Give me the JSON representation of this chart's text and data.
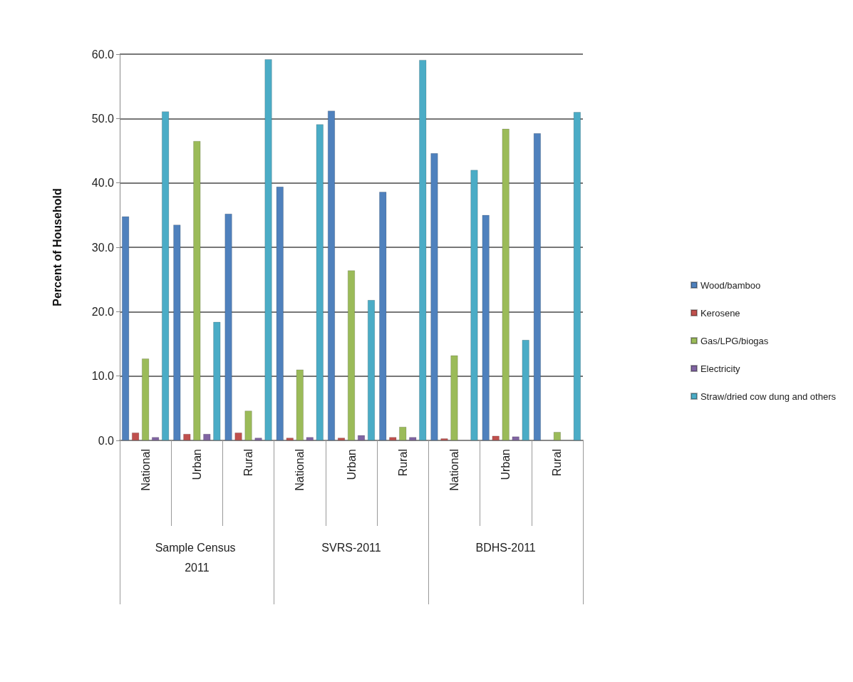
{
  "chart_data": {
    "type": "bar",
    "ylabel": "Percent of Household",
    "categories": [
      "National",
      "Urban",
      "Rural",
      "National",
      "Urban",
      "Rural",
      "National",
      "Urban",
      "Rural"
    ],
    "annotations": [
      "Sample Census 2011",
      "SVRS-2011",
      "BDHS-2011"
    ],
    "series": [
      {
        "name": "Wood/bamboo",
        "color": "#4f81bd",
        "values": [
          34.8,
          33.5,
          35.2,
          39.4,
          51.2,
          38.6,
          44.6,
          35.0,
          47.7
        ]
      },
      {
        "name": "Kerosene",
        "color": "#c0504d",
        "values": [
          1.2,
          1.0,
          1.2,
          0.4,
          0.4,
          0.5,
          0.3,
          0.7,
          null
        ]
      },
      {
        "name": "Gas/LPG/biogas",
        "color": "#9bbb59",
        "values": [
          12.7,
          46.5,
          4.6,
          11.0,
          26.4,
          2.1,
          13.2,
          48.4,
          1.3
        ]
      },
      {
        "name": "Electricity",
        "color": "#8064a2",
        "values": [
          0.5,
          1.0,
          0.4,
          0.5,
          0.8,
          0.5,
          null,
          0.6,
          null
        ]
      },
      {
        "name": "Straw/dried cow dung and others",
        "color": "#4bacc6",
        "values": [
          51.1,
          18.4,
          59.2,
          49.1,
          21.8,
          59.1,
          42.0,
          15.6,
          51.0
        ]
      }
    ],
    "ylim": [
      0,
      60
    ],
    "yticks": [
      {
        "value": 0,
        "label": "0.0"
      },
      {
        "value": 10,
        "label": "10.0"
      },
      {
        "value": 20,
        "label": "20.0"
      },
      {
        "value": 30,
        "label": "30.0"
      },
      {
        "value": 40,
        "label": "40.0"
      },
      {
        "value": 50,
        "label": "50.0"
      },
      {
        "value": 60,
        "label": "60.0"
      }
    ],
    "grid": "y",
    "legend": "right"
  }
}
